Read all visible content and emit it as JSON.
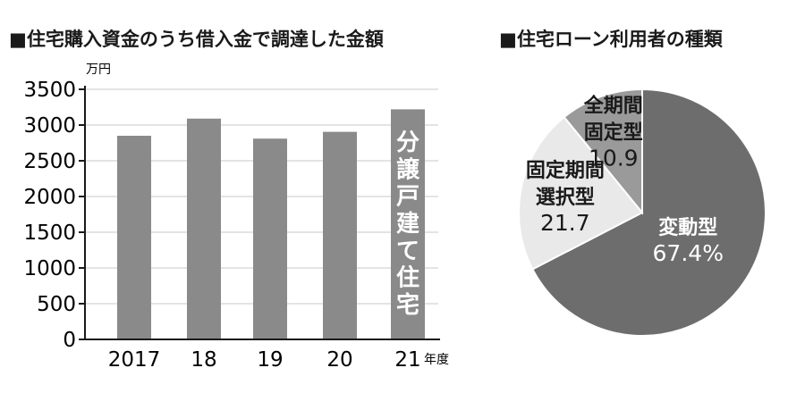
{
  "chart_data": [
    {
      "type": "bar",
      "title": "■住宅購入資金のうち借入金で調達した金額",
      "ylabel": "万円",
      "xlabel": "年度",
      "categories": [
        "2017",
        "18",
        "19",
        "20",
        "21"
      ],
      "values": [
        2850,
        3090,
        2810,
        2905,
        3220
      ],
      "ylim": [
        0,
        3500
      ],
      "yticks": [
        0,
        500,
        1000,
        1500,
        2000,
        2500,
        3000,
        3500
      ],
      "annotation": "分譲戸建て住宅",
      "bar_color": "#8a8a8a",
      "grid": true
    },
    {
      "type": "pie",
      "title": "■住宅ローン利用者の種類",
      "slices": [
        {
          "label": "変動型",
          "value": 67.4,
          "value_text": "67.4%",
          "color": "#6d6d6d",
          "text_color": "#ffffff"
        },
        {
          "label": "固定期間選択型",
          "value": 21.7,
          "value_text": "21.7",
          "color": "#e9e9e9",
          "text_color": "#1a1a1a"
        },
        {
          "label": "全期間固定型",
          "value": 10.9,
          "value_text": "10.9",
          "color": "#9a9a9a",
          "text_color": "#1a1a1a"
        }
      ]
    }
  ]
}
